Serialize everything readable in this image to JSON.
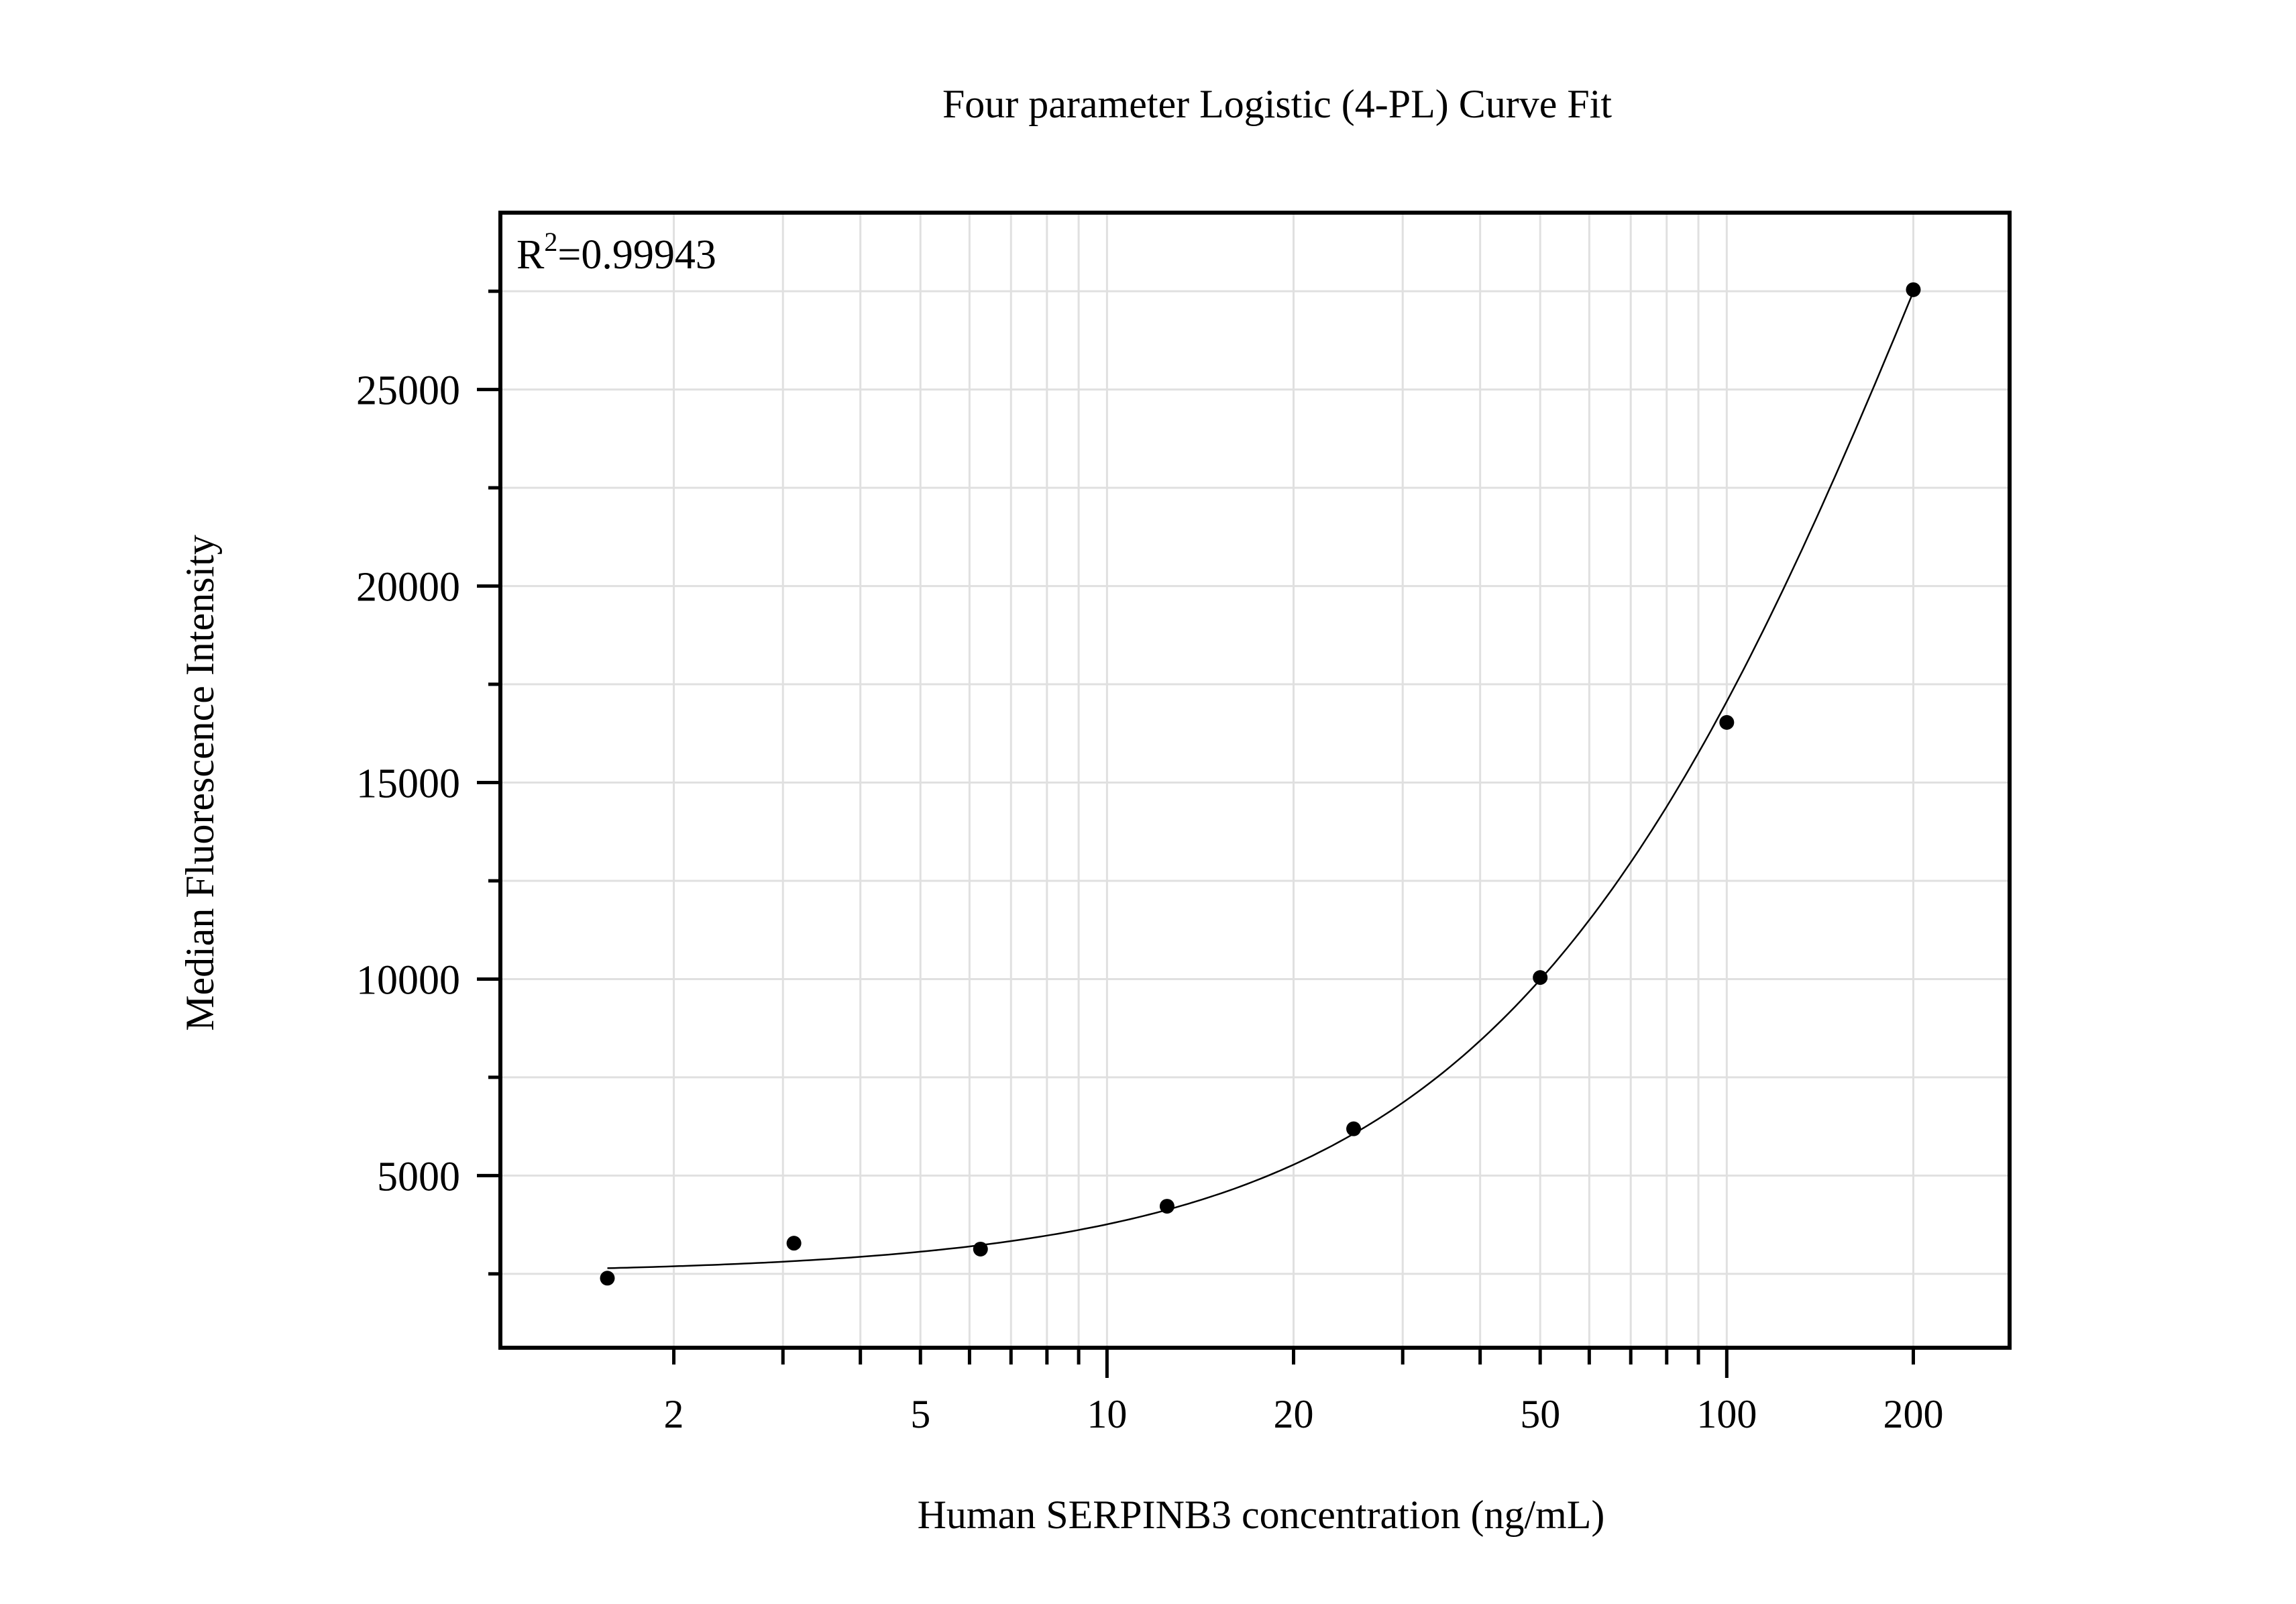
{
  "chart_data": {
    "type": "scatter",
    "title": "Four parameter Logistic (4-PL) Curve Fit",
    "xlabel": "Human SERPINB3 concentration (ng/mL)",
    "ylabel": "Median Fluorescence Intensity",
    "annotation": {
      "base": "R",
      "sup": "2",
      "value": "=0.99943"
    },
    "x_scale": "log",
    "xlim": [
      1.05,
      286
    ],
    "ylim": [
      620,
      29500
    ],
    "x_ticks": [
      2,
      5,
      10,
      20,
      50,
      100,
      200
    ],
    "x_tick_labels": [
      "2",
      "5",
      "10",
      "20",
      "50",
      "100",
      "200"
    ],
    "y_ticks": [
      5000,
      10000,
      15000,
      20000,
      25000
    ],
    "y_tick_labels": [
      "5000",
      "10000",
      "15000",
      "20000",
      "25000"
    ],
    "y_minor_step": 2500,
    "grid": true,
    "points": {
      "x": [
        1.5625,
        3.125,
        6.25,
        12.5,
        25,
        50,
        100,
        200
      ],
      "y": [
        2390,
        3280,
        3130,
        4220,
        6190,
        10040,
        16530,
        27540
      ]
    },
    "fit": {
      "model": "4PL",
      "a": 2500,
      "b": 1.18,
      "c": 250,
      "d": 60000,
      "x_range": [
        1.5625,
        200
      ]
    },
    "colors": {
      "points": "#000000",
      "curve": "#000000",
      "grid": "#e0e0e0",
      "axes": "#000000"
    }
  }
}
